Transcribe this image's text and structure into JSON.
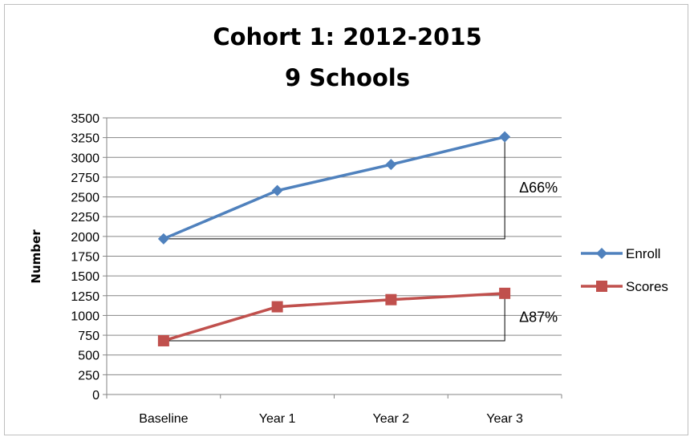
{
  "chart_data": {
    "type": "line",
    "title": [
      "Cohort 1: 2012-2015",
      "9 Schools"
    ],
    "xlabel": "",
    "ylabel": "Number",
    "ylim": [
      0,
      3500
    ],
    "ytick_step": 250,
    "grid": true,
    "legend_position": "right",
    "categories": [
      "Baseline",
      "Year 1",
      "Year 2",
      "Year 3"
    ],
    "series": [
      {
        "name": "Enroll",
        "values": [
          1970,
          2580,
          2910,
          3260
        ],
        "color": "#4f81bd",
        "marker": "diamond"
      },
      {
        "name": "Scores",
        "values": [
          680,
          1110,
          1200,
          1280
        ],
        "color": "#c0504d",
        "marker": "square"
      }
    ],
    "annotations": [
      {
        "text": "Δ66%",
        "series": "Enroll",
        "from": "Baseline",
        "to": "Year 3"
      },
      {
        "text": "Δ87%",
        "series": "Scores",
        "from": "Baseline",
        "to": "Year 3"
      }
    ]
  }
}
